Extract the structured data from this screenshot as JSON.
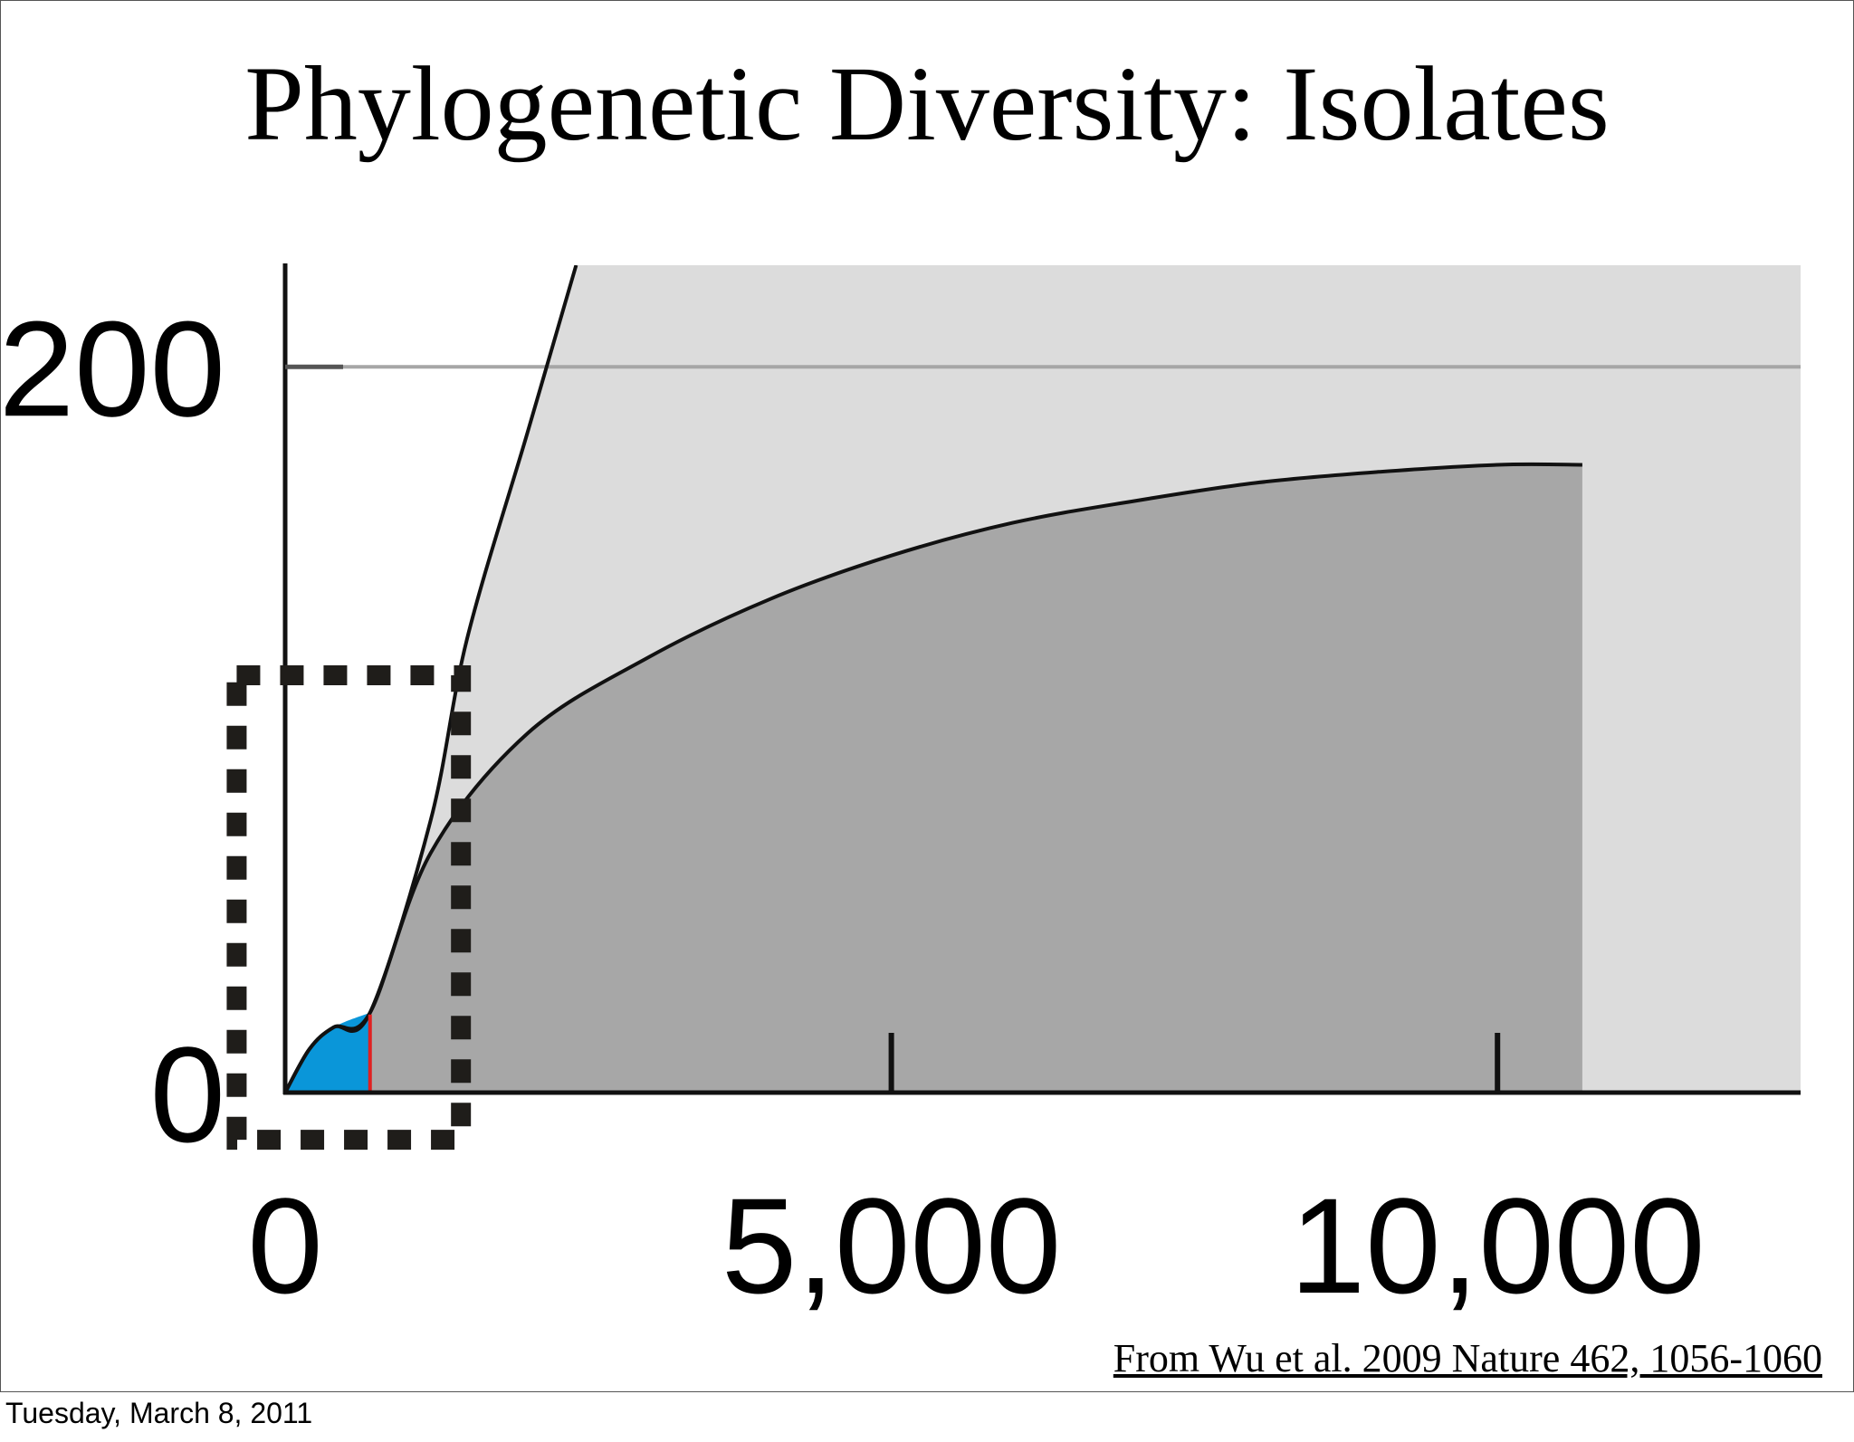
{
  "slide": {
    "title": "Phylogenetic Diversity: Isolates",
    "citation": "From Wu et al. 2009 Nature 462, 1056-1060",
    "date": "Tuesday, March 8, 2011"
  },
  "chart_data": {
    "type": "area",
    "title": "Phylogenetic Diversity: Isolates",
    "xlabel": "",
    "ylabel": "",
    "xlim": [
      0,
      12500
    ],
    "ylim": [
      0,
      228
    ],
    "x_ticks": [
      0,
      5000,
      10000
    ],
    "x_tick_labels": [
      "0",
      "5,000",
      "10,000"
    ],
    "y_ticks": [
      0,
      200
    ],
    "y_tick_labels": [
      "0",
      "200"
    ],
    "grid": false,
    "reference_line": {
      "y": 200,
      "color": "#a6a6a6"
    },
    "colors": {
      "upper_region": "#dcdcdc",
      "lower_region": "#a7a7a7",
      "existing_genomes": "#0a96d9",
      "divider": "#e02020",
      "axis": "#111111",
      "dashed_box": "#1f1d1a"
    },
    "series": [
      {
        "x": [
          0,
          200,
          400,
          700,
          1200,
          1500,
          2000,
          2400
        ],
        "y": [
          0,
          12,
          18,
          22,
          75,
          125,
          182,
          228
        ]
      },
      {
        "x": [
          0,
          200,
          400,
          700,
          1200,
          2000,
          3000,
          4000,
          5000,
          6000,
          7000,
          8000,
          9000,
          10000,
          10700
        ],
        "y": [
          0,
          12,
          18,
          22,
          66,
          99,
          120,
          136,
          148,
          157,
          163,
          168,
          171,
          173,
          173
        ]
      }
    ],
    "highlight_region": {
      "x_range": [
        0,
        700
      ],
      "color": "#0a96d9"
    },
    "divider_x": 700,
    "dashed_box": {
      "x_range": [
        -400,
        1450
      ],
      "y_range": [
        -13,
        115
      ]
    }
  }
}
